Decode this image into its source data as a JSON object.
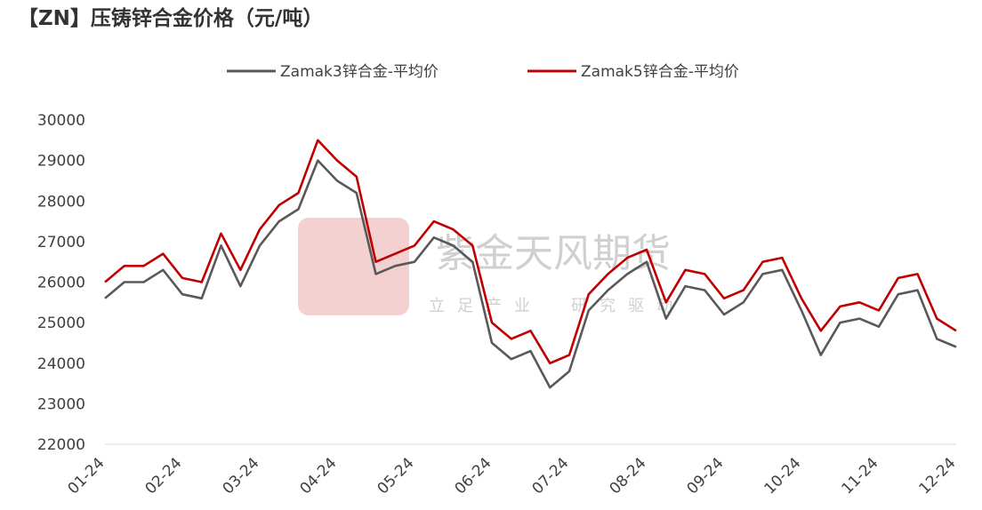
{
  "chart_data": {
    "type": "line",
    "title": "【ZN】压铸锌合金价格（元/吨）",
    "watermark": "紫金天风期货",
    "watermark_sub": "立足产业　研究驱动",
    "categories": [
      "01-24",
      null,
      null,
      null,
      "02-24",
      null,
      null,
      null,
      "03-24",
      null,
      null,
      null,
      "04-24",
      null,
      null,
      null,
      "05-24",
      null,
      null,
      null,
      "06-24",
      null,
      null,
      null,
      "07-24",
      null,
      null,
      null,
      "08-24",
      null,
      null,
      null,
      "09-24",
      null,
      null,
      null,
      "10-24",
      null,
      null,
      null,
      "11-24",
      null,
      null,
      null,
      "12-24"
    ],
    "series": [
      {
        "name": "Zamak3锌合金-平均价",
        "color": "#595959",
        "values": [
          25600,
          26000,
          26000,
          26300,
          25700,
          25600,
          26900,
          25900,
          26900,
          27500,
          27800,
          29000,
          28500,
          28200,
          26200,
          26400,
          26500,
          27100,
          26900,
          26500,
          24500,
          24100,
          24300,
          23400,
          23800,
          25300,
          25800,
          26200,
          26500,
          25100,
          25900,
          25800,
          25200,
          25500,
          26200,
          26300,
          25300,
          24200,
          25000,
          25100,
          24900,
          25700,
          25800,
          24600,
          24400
        ]
      },
      {
        "name": "Zamak5锌合金-平均价",
        "color": "#c00000",
        "values": [
          26000,
          26400,
          26400,
          26700,
          26100,
          26000,
          27200,
          26300,
          27300,
          27900,
          28200,
          29500,
          29000,
          28600,
          26500,
          26700,
          26900,
          27500,
          27300,
          26900,
          25000,
          24600,
          24800,
          24000,
          24200,
          25700,
          26200,
          26600,
          26800,
          25500,
          26300,
          26200,
          25600,
          25800,
          26500,
          26600,
          25600,
          24800,
          25400,
          25500,
          25300,
          26100,
          26200,
          25100,
          24800
        ]
      }
    ],
    "ylim": [
      22000,
      30000
    ],
    "yticks": [
      22000,
      23000,
      24000,
      25000,
      26000,
      27000,
      28000,
      29000,
      30000
    ],
    "grid": false
  }
}
